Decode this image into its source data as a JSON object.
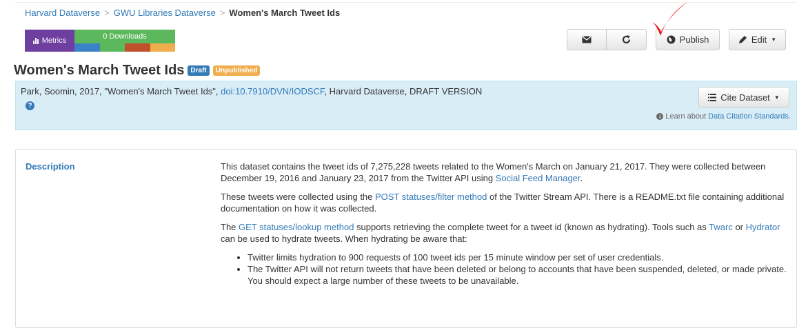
{
  "breadcrumb": {
    "items": [
      "Harvard Dataverse",
      "GWU Libraries Dataverse"
    ],
    "separator": ">",
    "current": "Women's March Tweet Ids"
  },
  "metrics": {
    "label": "Metrics",
    "downloads": "0 Downloads",
    "bar_colors": [
      "#3b83c6",
      "#5cb85c",
      "#c0502a",
      "#f0ad4e"
    ]
  },
  "toolbar": {
    "email_icon": "envelope-icon",
    "share_icon": "share-icon",
    "publish_label": "Publish",
    "edit_label": "Edit"
  },
  "dataset": {
    "title": "Women's March Tweet Ids",
    "badge_draft": "Draft",
    "badge_unpublished": "Unpublished"
  },
  "citation": {
    "prefix": "Park, Soomin, 2017, \"Women's March Tweet Ids\", ",
    "doi": "doi:10.7910/DVN/IODSCF",
    "suffix": ", Harvard Dataverse, DRAFT VERSION",
    "cite_button": "Cite Dataset",
    "learn_prefix": "Learn about ",
    "learn_link": "Data Citation Standards."
  },
  "description": {
    "label": "Description",
    "p1": {
      "text": "This dataset contains the tweet ids of 7,275,228 tweets related to the Women's March on January 21, 2017. They were collected between December 19, 2016 and January 23, 2017 from the Twitter API using ",
      "link": "Social Feed Manager",
      "end": "."
    },
    "p2": {
      "pre": "These tweets were collected using the ",
      "link": "POST statuses/filter method",
      "post": " of the Twitter Stream API. There is a README.txt file containing additional documentation on how it was collected."
    },
    "p3": {
      "pre": "The ",
      "link1": "GET statuses/lookup method",
      "mid": " supports retrieving the complete tweet for a tweet id (known as hydrating). Tools such as ",
      "link2": "Twarc",
      "or": " or ",
      "link3": "Hydrator",
      "post": " can be used to hydrate tweets. When hydrating be aware that:"
    },
    "bullets": [
      "Twitter limits hydration to 900 requests of 100 tweet ids per 15 minute window per set of user credentials.",
      "The Twitter API will not return tweets that have been deleted or belong to accounts that have been suspended, deleted, or made private. You should expect a large number of these tweets to be unavailable."
    ]
  },
  "annotation": {
    "checkmark_color": "#e8141b"
  }
}
